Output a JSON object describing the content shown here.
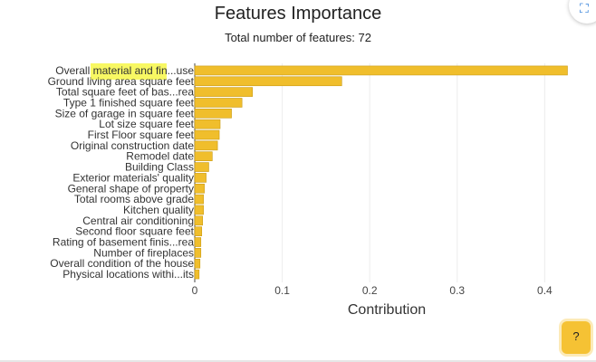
{
  "chart_data": {
    "type": "bar",
    "orientation": "horizontal",
    "title": "Features Importance",
    "subtitle": "Total number of features: 72",
    "xlabel": "Contribution",
    "ylabel": "",
    "xlim": [
      0,
      0.44
    ],
    "xticks": [
      0,
      0.1,
      0.2,
      0.3,
      0.4
    ],
    "xtick_labels": [
      "0",
      "0.1",
      "0.2",
      "0.3",
      "0.4"
    ],
    "grid": true,
    "bar_color": "#f0be2c",
    "bar_edge_color": "#c99a12",
    "highlight_color": "#f7f752",
    "categories": [
      "Overall material and fin...use",
      "Ground living area square feet",
      "Total square feet of bas...rea",
      "Type 1 finished square feet",
      "Size of garage in square feet",
      "Lot size square feet",
      "First Floor square feet",
      "Original construction date",
      "Remodel date",
      "Building Class",
      "Exterior materials' quality",
      "General shape of property",
      "Total rooms above grade",
      "Kitchen quality",
      "Central air conditioning",
      "Second floor square feet",
      "Rating of basement finis...rea",
      "Number of fireplaces",
      "Overall condition of the house",
      "Physical locations withi...its"
    ],
    "values": [
      0.426,
      0.168,
      0.066,
      0.054,
      0.042,
      0.029,
      0.028,
      0.026,
      0.02,
      0.016,
      0.013,
      0.011,
      0.01,
      0.01,
      0.009,
      0.008,
      0.007,
      0.007,
      0.006,
      0.005
    ]
  },
  "ui": {
    "help_label": "?",
    "expand_icon": "expand-icon",
    "help_color": "#f5c234",
    "accent_color": "#2a7bd8"
  }
}
